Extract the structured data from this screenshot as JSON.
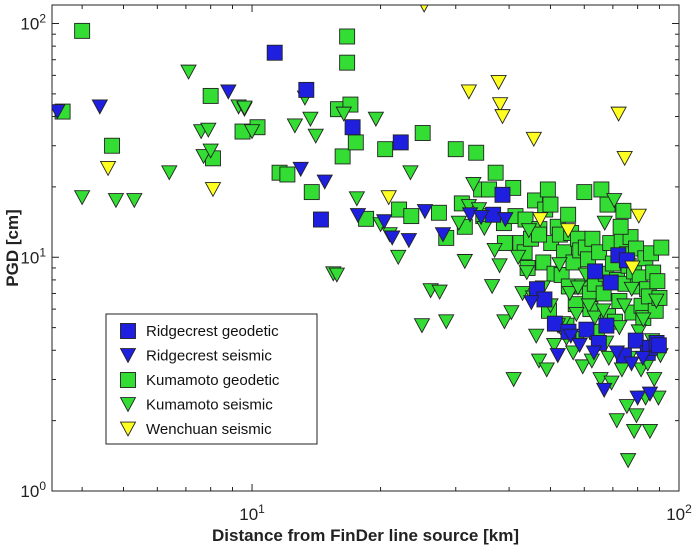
{
  "chart_data": {
    "type": "scatter",
    "title": "",
    "xlabel": "Distance from FinDer line source [km]",
    "ylabel": "PGD [cm]",
    "x_scale": "log",
    "y_scale": "log",
    "xlim": [
      3.4,
      100
    ],
    "ylim": [
      1,
      120
    ],
    "x_ticks": [
      {
        "value": 10,
        "base": "10",
        "exp": "1"
      },
      {
        "value": 100,
        "base": "10",
        "exp": "2"
      }
    ],
    "y_ticks": [
      {
        "value": 1,
        "base": "10",
        "exp": "0"
      },
      {
        "value": 10,
        "base": "10",
        "exp": "1"
      },
      {
        "value": 100,
        "base": "10",
        "exp": "2"
      }
    ],
    "grid": false,
    "legend_position": "lower-left",
    "series": [
      {
        "name": "Ridgecrest geodetic",
        "marker": "square",
        "color": "#1f1fe0",
        "points": [
          [
            11.3,
            75
          ],
          [
            13.4,
            52
          ],
          [
            14.5,
            14.5
          ],
          [
            17.2,
            36
          ],
          [
            22.3,
            31
          ],
          [
            36.7,
            15.2
          ],
          [
            38.6,
            18.5
          ],
          [
            46.5,
            7.3
          ],
          [
            48.4,
            6.6
          ],
          [
            51.2,
            5.2
          ],
          [
            55.1,
            4.8
          ],
          [
            60.7,
            4.9
          ],
          [
            64.9,
            4.3
          ],
          [
            67.6,
            5.1
          ],
          [
            69.2,
            7.8
          ],
          [
            72.1,
            10.2
          ],
          [
            74.3,
            3.8
          ],
          [
            79.2,
            4.4
          ],
          [
            84.5,
            3.9
          ],
          [
            85.5,
            4.1
          ],
          [
            88.6,
            4.3
          ],
          [
            89.7,
            4.2
          ],
          [
            63.6,
            8.7
          ],
          [
            75.5,
            9.7
          ]
        ]
      },
      {
        "name": "Ridgecrest seismic",
        "marker": "triangle",
        "color": "#1f1fe0",
        "points": [
          [
            3.5,
            42
          ],
          [
            4.4,
            44
          ],
          [
            8.8,
            51
          ],
          [
            13.0,
            23.8
          ],
          [
            14.8,
            21
          ],
          [
            17.7,
            15.1
          ],
          [
            20.4,
            14.2
          ],
          [
            21.3,
            12.1
          ],
          [
            23.3,
            11.8
          ],
          [
            25.4,
            15.7
          ],
          [
            28.0,
            12.5
          ],
          [
            32.4,
            15.2
          ],
          [
            34.4,
            14.8
          ],
          [
            39.2,
            14.5
          ],
          [
            45.1,
            6.4
          ],
          [
            52.0,
            3.8
          ],
          [
            55.8,
            4.6
          ],
          [
            58.5,
            4.2
          ],
          [
            63.2,
            3.9
          ],
          [
            66.8,
            2.7
          ],
          [
            71.5,
            3.9
          ],
          [
            77.4,
            3.5
          ],
          [
            80.0,
            2.5
          ],
          [
            82.3,
            3.7
          ],
          [
            85.5,
            2.6
          ]
        ]
      },
      {
        "name": "Kumamoto geodetic",
        "marker": "square",
        "color": "#33dd33",
        "points": [
          [
            3.6,
            42
          ],
          [
            4.0,
            93
          ],
          [
            4.7,
            30
          ],
          [
            8.0,
            49
          ],
          [
            8.1,
            26.5
          ],
          [
            9.5,
            34.5
          ],
          [
            10.3,
            36
          ],
          [
            11.6,
            23
          ],
          [
            12.1,
            22.6
          ],
          [
            13.8,
            19
          ],
          [
            15.9,
            43
          ],
          [
            16.3,
            27
          ],
          [
            16.7,
            88
          ],
          [
            16.7,
            68
          ],
          [
            17.0,
            45
          ],
          [
            17.5,
            31
          ],
          [
            18.5,
            14.6
          ],
          [
            20.5,
            29
          ],
          [
            22.1,
            16
          ],
          [
            23.6,
            15
          ],
          [
            25.1,
            34
          ],
          [
            27.4,
            15.5
          ],
          [
            28.5,
            12.1
          ],
          [
            30.0,
            29
          ],
          [
            31.0,
            17
          ],
          [
            31.5,
            13.5
          ],
          [
            33.5,
            28
          ],
          [
            34.4,
            19.5
          ],
          [
            34.8,
            15
          ],
          [
            35.9,
            19.5
          ],
          [
            37.2,
            23
          ],
          [
            38.9,
            14
          ],
          [
            39.1,
            11.5
          ],
          [
            40.9,
            19.8
          ],
          [
            41.4,
            15
          ],
          [
            42.5,
            11.5
          ],
          [
            43.5,
            10.5
          ],
          [
            43.7,
            14.5
          ],
          [
            44.2,
            9
          ],
          [
            45.0,
            12
          ],
          [
            46.0,
            17.5
          ],
          [
            47.1,
            13.2
          ],
          [
            48.1,
            9.5
          ],
          [
            48.6,
            16
          ],
          [
            49.3,
            19.5
          ],
          [
            49.6,
            5.9
          ],
          [
            50.2,
            11.5
          ],
          [
            51.1,
            8.5
          ],
          [
            52.0,
            13.5
          ],
          [
            52.6,
            12.5
          ],
          [
            53.1,
            8.4
          ],
          [
            53.8,
            10.5
          ],
          [
            54.5,
            5.1
          ],
          [
            55.2,
            7.5
          ],
          [
            55.9,
            12.7
          ],
          [
            56.6,
            9.5
          ],
          [
            57.3,
            6.3
          ],
          [
            58.0,
            12.0
          ],
          [
            58.7,
            10.7
          ],
          [
            59.4,
            7.5
          ],
          [
            60.5,
            11.0
          ],
          [
            61.2,
            9.8
          ],
          [
            61.9,
            7.0
          ],
          [
            62.7,
            12.0
          ],
          [
            63.5,
            7.7
          ],
          [
            64.2,
            4.8
          ],
          [
            65.0,
            10.5
          ],
          [
            65.8,
            19.5
          ],
          [
            66.6,
            7.0
          ],
          [
            67.4,
            8.5
          ],
          [
            68.2,
            5.6
          ],
          [
            69.0,
            11.5
          ],
          [
            70.0,
            9.4
          ],
          [
            70.8,
            5.3
          ],
          [
            71.6,
            8.0
          ],
          [
            72.5,
            6.5
          ],
          [
            73.4,
            11.7
          ],
          [
            74.1,
            15.8
          ],
          [
            74.9,
            7.7
          ],
          [
            75.5,
            10.3
          ],
          [
            76.2,
            9.2
          ],
          [
            77.0,
            12.2
          ],
          [
            77.8,
            5.8
          ],
          [
            78.5,
            8.7
          ],
          [
            79.3,
            10.9
          ],
          [
            80.1,
            7.5
          ],
          [
            80.9,
            8.2
          ],
          [
            81.7,
            6.2
          ],
          [
            82.5,
            5.5
          ],
          [
            83.4,
            9.9
          ],
          [
            84.2,
            7.3
          ],
          [
            85.0,
            6.8
          ],
          [
            86.0,
            10.4
          ],
          [
            87.0,
            8.6
          ],
          [
            88.2,
            5.9
          ],
          [
            89.0,
            7.9
          ],
          [
            90.0,
            6.7
          ],
          [
            90.9,
            11.0
          ],
          [
            60.0,
            19.0
          ],
          [
            55.0,
            15.2
          ],
          [
            50.0,
            16.8
          ],
          [
            47.0,
            12.5
          ],
          [
            68.0,
            16.8
          ],
          [
            73.0,
            13.5
          ],
          [
            62.0,
            6.0
          ]
        ]
      },
      {
        "name": "Kumamoto seismic",
        "marker": "triangle",
        "color": "#33dd33",
        "points": [
          [
            4.0,
            18
          ],
          [
            4.8,
            17.5
          ],
          [
            5.3,
            17.5
          ],
          [
            6.4,
            23
          ],
          [
            7.1,
            62
          ],
          [
            7.6,
            34.5
          ],
          [
            7.7,
            27
          ],
          [
            7.9,
            35
          ],
          [
            8.0,
            28.5
          ],
          [
            9.3,
            44
          ],
          [
            9.6,
            43
          ],
          [
            9.6,
            43.5
          ],
          [
            10.0,
            34.5
          ],
          [
            12.6,
            36.5
          ],
          [
            13.3,
            48
          ],
          [
            13.7,
            39
          ],
          [
            14.1,
            33
          ],
          [
            15.5,
            8.5
          ],
          [
            15.8,
            8.4
          ],
          [
            16.4,
            41
          ],
          [
            17.6,
            17.8
          ],
          [
            19.5,
            39
          ],
          [
            20.0,
            13.8
          ],
          [
            21.0,
            12.5
          ],
          [
            22.0,
            10.0
          ],
          [
            23.5,
            23
          ],
          [
            25.0,
            5.1
          ],
          [
            26.2,
            7.2
          ],
          [
            27.5,
            7.1
          ],
          [
            28.5,
            5.3
          ],
          [
            30.5,
            14
          ],
          [
            31.5,
            9.6
          ],
          [
            32.2,
            16.5
          ],
          [
            33.0,
            20.5
          ],
          [
            34.0,
            16.0
          ],
          [
            35.0,
            13.3
          ],
          [
            36.5,
            7.5
          ],
          [
            37.0,
            10.7
          ],
          [
            38.0,
            9.2
          ],
          [
            39.0,
            5.3
          ],
          [
            40.5,
            5.8
          ],
          [
            41.0,
            3.0
          ],
          [
            42.0,
            10.0
          ],
          [
            43.0,
            7.0
          ],
          [
            44.0,
            8.6
          ],
          [
            45.5,
            6.7
          ],
          [
            46.3,
            4.6
          ],
          [
            47.0,
            3.6
          ],
          [
            48.0,
            7.4
          ],
          [
            49.0,
            3.3
          ],
          [
            50.0,
            6.2
          ],
          [
            51.0,
            4.2
          ],
          [
            52.5,
            9.3
          ],
          [
            53.5,
            5.2
          ],
          [
            54.5,
            4.5
          ],
          [
            55.5,
            7.0
          ],
          [
            56.5,
            3.9
          ],
          [
            57.5,
            5.7
          ],
          [
            58.5,
            4.5
          ],
          [
            59.5,
            3.4
          ],
          [
            60.5,
            8.4
          ],
          [
            61.5,
            6.2
          ],
          [
            62.5,
            3.6
          ],
          [
            63.5,
            5.5
          ],
          [
            64.5,
            4.2
          ],
          [
            65.5,
            3.0
          ],
          [
            66.5,
            5.9
          ],
          [
            67.5,
            4.3
          ],
          [
            68.5,
            3.7
          ],
          [
            69.5,
            2.9
          ],
          [
            70.5,
            17.5
          ],
          [
            71.5,
            2.0
          ],
          [
            72.5,
            5.0
          ],
          [
            73.5,
            3.3
          ],
          [
            74.5,
            6.2
          ],
          [
            75.5,
            2.3
          ],
          [
            76.5,
            3.7
          ],
          [
            77.5,
            7.3
          ],
          [
            78.5,
            1.8
          ],
          [
            79.5,
            2.1
          ],
          [
            80.5,
            4.8
          ],
          [
            81.5,
            3.3
          ],
          [
            82.5,
            5.4
          ],
          [
            83.5,
            2.5
          ],
          [
            84.5,
            3.5
          ],
          [
            85.5,
            1.8
          ],
          [
            86.5,
            4.4
          ],
          [
            87.5,
            3.0
          ],
          [
            88.5,
            6.5
          ],
          [
            89.5,
            2.5
          ],
          [
            90.5,
            3.8
          ],
          [
            76.0,
            1.35
          ],
          [
            67.0,
            14.0
          ],
          [
            58.0,
            7.4
          ],
          [
            44.5,
            13.0
          ],
          [
            52.0,
            5.1
          ]
        ]
      },
      {
        "name": "Wenchuan seismic",
        "marker": "triangle",
        "color": "#ffff22",
        "points": [
          [
            4.6,
            24
          ],
          [
            8.1,
            19.5
          ],
          [
            20.9,
            18
          ],
          [
            25.3,
            120
          ],
          [
            32.2,
            51
          ],
          [
            37.8,
            56
          ],
          [
            38.1,
            45
          ],
          [
            38.6,
            40
          ],
          [
            45.7,
            32
          ],
          [
            47.3,
            14.5
          ],
          [
            55.0,
            13
          ],
          [
            72.2,
            41
          ],
          [
            74.6,
            26.5
          ],
          [
            77.8,
            9
          ],
          [
            80.5,
            15
          ]
        ]
      }
    ]
  }
}
